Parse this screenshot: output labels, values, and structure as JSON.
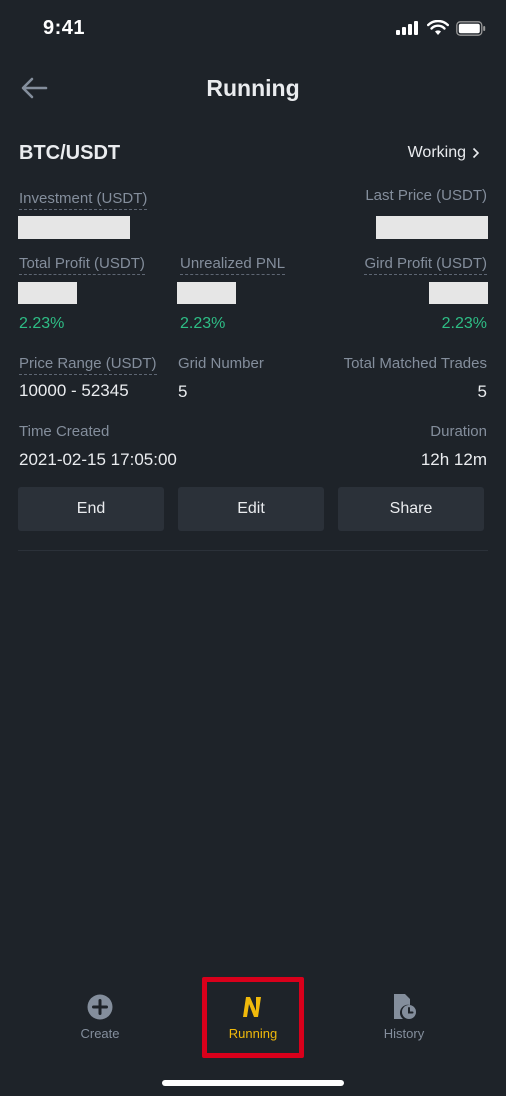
{
  "status": {
    "time": "9:41"
  },
  "header": {
    "title": "Running"
  },
  "bot": {
    "pair": "BTC/USDT",
    "state": "Working",
    "investment_label": "Investment (USDT)",
    "last_price_label": "Last Price (USDT)",
    "total_profit_label": "Total Profit (USDT)",
    "unrealized_pnl_label": "Unrealized PNL",
    "grid_profit_label": "Gird Profit (USDT)",
    "total_profit_pct": "2.23%",
    "unrealized_pnl_pct": "2.23%",
    "grid_profit_pct": "2.23%",
    "price_range_label": "Price Range (USDT)",
    "price_range_value": "10000 - 52345",
    "grid_number_label": "Grid Number",
    "grid_number_value": "5",
    "matched_trades_label": "Total Matched Trades",
    "matched_trades_value": "5",
    "time_created_label": "Time Created",
    "time_created_value": "2021-02-15 17:05:00",
    "duration_label": "Duration",
    "duration_value": "12h 12m"
  },
  "actions": {
    "end_label": "End",
    "edit_label": "Edit",
    "share_label": "Share"
  },
  "tabbar": {
    "items": [
      {
        "label": "Create",
        "icon": "plus-circle-icon"
      },
      {
        "label": "Running",
        "icon": "running-bot-icon",
        "active": true
      },
      {
        "label": "History",
        "icon": "history-icon"
      }
    ]
  },
  "colors": {
    "background": "#1e2329",
    "accent": "#f0b90b",
    "positive": "#2ebd85",
    "highlight": "#d9001b"
  }
}
